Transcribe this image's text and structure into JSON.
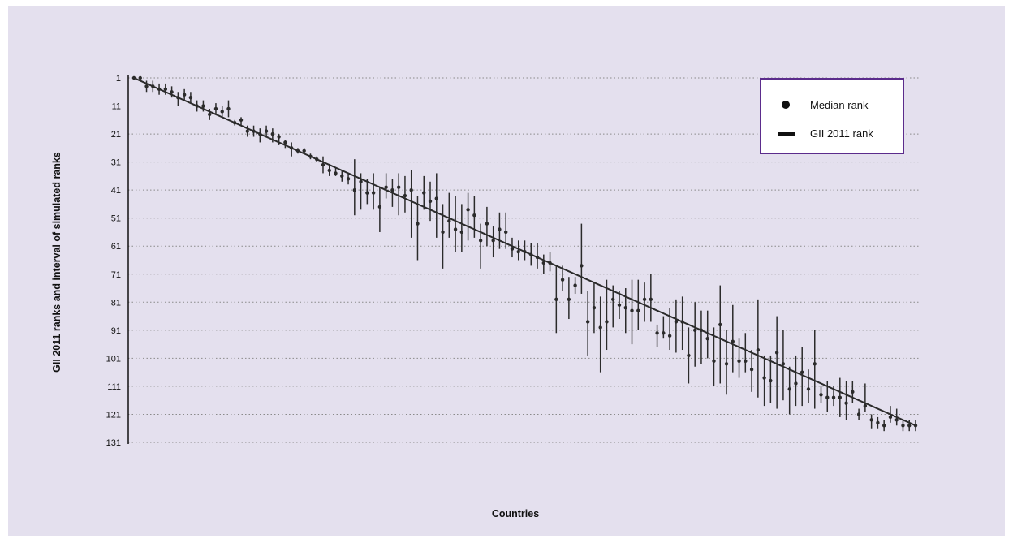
{
  "colors": {
    "panel_background": "#e4e0ee",
    "marks": "#2b2b2b",
    "legend_border": "#5b2c8c",
    "gridline": "#8a8a8a"
  },
  "chart_data": {
    "type": "scatter",
    "title": "",
    "xlabel": "Countries",
    "ylabel": "GII 2011 ranks and interval of simulated ranks",
    "y_inverted": true,
    "ylim": [
      1,
      131
    ],
    "yticks": [
      1,
      11,
      21,
      31,
      41,
      51,
      61,
      71,
      81,
      91,
      101,
      111,
      121,
      131
    ],
    "xlim": [
      1,
      125
    ],
    "grid": "horizontal dotted",
    "legend_position": "top-right",
    "legend": [
      {
        "marker": "dot",
        "label": "Median rank"
      },
      {
        "marker": "line",
        "label": "GII 2011 rank"
      }
    ],
    "series": [
      {
        "name": "Median rank",
        "x": [
          1,
          2,
          3,
          4,
          5,
          6,
          7,
          8,
          9,
          10,
          11,
          12,
          13,
          14,
          15,
          16,
          17,
          18,
          19,
          20,
          21,
          22,
          23,
          24,
          25,
          26,
          27,
          28,
          29,
          30,
          31,
          32,
          33,
          34,
          35,
          36,
          37,
          38,
          39,
          40,
          41,
          42,
          43,
          44,
          45,
          46,
          47,
          48,
          49,
          50,
          51,
          52,
          53,
          54,
          55,
          56,
          57,
          58,
          59,
          60,
          61,
          62,
          63,
          64,
          65,
          66,
          67,
          68,
          69,
          70,
          71,
          72,
          73,
          74,
          75,
          76,
          77,
          78,
          79,
          80,
          81,
          82,
          83,
          84,
          85,
          86,
          87,
          88,
          89,
          90,
          91,
          92,
          93,
          94,
          95,
          96,
          97,
          98,
          99,
          100,
          101,
          102,
          103,
          104,
          105,
          106,
          107,
          108,
          109,
          110,
          111,
          112,
          113,
          114,
          115,
          116,
          117,
          118,
          119,
          120,
          121,
          122,
          123,
          124,
          125
        ],
        "y": [
          1,
          1,
          4,
          4,
          5,
          5,
          6,
          8,
          7,
          8,
          11,
          11,
          14,
          12,
          13,
          12,
          17,
          16,
          20,
          20,
          21,
          20,
          21,
          22,
          24,
          26,
          27,
          27,
          29,
          30,
          32,
          34,
          35,
          36,
          37,
          41,
          38,
          42,
          42,
          47,
          40,
          41,
          40,
          43,
          41,
          53,
          42,
          45,
          44,
          56,
          52,
          55,
          56,
          48,
          50,
          59,
          53,
          59,
          55,
          56,
          62,
          63,
          63,
          64,
          65,
          67,
          67,
          80,
          73,
          80,
          75,
          68,
          88,
          83,
          90,
          88,
          80,
          82,
          83,
          84,
          84,
          80,
          80,
          92,
          92,
          93,
          88,
          88,
          100,
          91,
          91,
          94,
          102,
          89,
          103,
          95,
          102,
          102,
          105,
          98,
          108,
          109,
          99,
          103,
          112,
          110,
          106,
          112,
          103,
          114,
          115,
          115,
          115,
          117,
          113,
          121,
          118,
          123,
          124,
          125,
          122,
          123,
          125,
          125,
          125
        ]
      },
      {
        "name": "Interval low",
        "x": [
          1,
          2,
          3,
          4,
          5,
          6,
          7,
          8,
          9,
          10,
          11,
          12,
          13,
          14,
          15,
          16,
          17,
          18,
          19,
          20,
          21,
          22,
          23,
          24,
          25,
          26,
          27,
          28,
          29,
          30,
          31,
          32,
          33,
          34,
          35,
          36,
          37,
          38,
          39,
          40,
          41,
          42,
          43,
          44,
          45,
          46,
          47,
          48,
          49,
          50,
          51,
          52,
          53,
          54,
          55,
          56,
          57,
          58,
          59,
          60,
          61,
          62,
          63,
          64,
          65,
          66,
          67,
          68,
          69,
          70,
          71,
          72,
          73,
          74,
          75,
          76,
          77,
          78,
          79,
          80,
          81,
          82,
          83,
          84,
          85,
          86,
          87,
          88,
          89,
          90,
          91,
          92,
          93,
          94,
          95,
          96,
          97,
          98,
          99,
          100,
          101,
          102,
          103,
          104,
          105,
          106,
          107,
          108,
          109,
          110,
          111,
          112,
          113,
          114,
          115,
          116,
          117,
          118,
          119,
          120,
          121,
          122,
          123,
          124,
          125
        ],
        "y": [
          1,
          1,
          2,
          2,
          3,
          3,
          4,
          6,
          5,
          6,
          9,
          9,
          12,
          10,
          11,
          9,
          16,
          15,
          18,
          18,
          19,
          18,
          19,
          21,
          23,
          24,
          26,
          26,
          28,
          29,
          29,
          32,
          33,
          34,
          35,
          30,
          35,
          37,
          35,
          40,
          35,
          37,
          35,
          36,
          34,
          43,
          36,
          38,
          35,
          46,
          42,
          43,
          46,
          42,
          43,
          53,
          47,
          54,
          49,
          49,
          58,
          59,
          59,
          60,
          60,
          64,
          63,
          68,
          68,
          72,
          72,
          53,
          77,
          74,
          79,
          73,
          75,
          77,
          76,
          73,
          73,
          74,
          71,
          89,
          86,
          83,
          80,
          79,
          90,
          81,
          84,
          84,
          90,
          75,
          91,
          82,
          94,
          92,
          98,
          80,
          100,
          100,
          86,
          91,
          104,
          100,
          97,
          105,
          91,
          111,
          109,
          111,
          108,
          109,
          109,
          119,
          110,
          121,
          122,
          123,
          118,
          119,
          123,
          123,
          123
        ]
      },
      {
        "name": "Interval high",
        "x": [
          1,
          2,
          3,
          4,
          5,
          6,
          7,
          8,
          9,
          10,
          11,
          12,
          13,
          14,
          15,
          16,
          17,
          18,
          19,
          20,
          21,
          22,
          23,
          24,
          25,
          26,
          27,
          28,
          29,
          30,
          31,
          32,
          33,
          34,
          35,
          36,
          37,
          38,
          39,
          40,
          41,
          42,
          43,
          44,
          45,
          46,
          47,
          48,
          49,
          50,
          51,
          52,
          53,
          54,
          55,
          56,
          57,
          58,
          59,
          60,
          61,
          62,
          63,
          64,
          65,
          66,
          67,
          68,
          69,
          70,
          71,
          72,
          73,
          74,
          75,
          76,
          77,
          78,
          79,
          80,
          81,
          82,
          83,
          84,
          85,
          86,
          87,
          88,
          89,
          90,
          91,
          92,
          93,
          94,
          95,
          96,
          97,
          98,
          99,
          100,
          101,
          102,
          103,
          104,
          105,
          106,
          107,
          108,
          109,
          110,
          111,
          112,
          113,
          114,
          115,
          116,
          117,
          118,
          119,
          120,
          121,
          122,
          123,
          124,
          125
        ],
        "y": [
          1,
          1,
          6,
          6,
          7,
          7,
          8,
          11,
          9,
          10,
          13,
          13,
          16,
          14,
          15,
          15,
          18,
          18,
          22,
          22,
          24,
          22,
          24,
          25,
          26,
          29,
          28,
          28,
          30,
          31,
          35,
          36,
          36,
          38,
          39,
          50,
          48,
          46,
          48,
          56,
          44,
          47,
          50,
          49,
          58,
          66,
          48,
          52,
          58,
          69,
          58,
          63,
          63,
          59,
          58,
          69,
          61,
          65,
          62,
          62,
          65,
          66,
          66,
          68,
          69,
          71,
          70,
          92,
          77,
          87,
          78,
          78,
          100,
          92,
          106,
          98,
          90,
          87,
          92,
          96,
          91,
          88,
          88,
          97,
          94,
          98,
          99,
          98,
          110,
          104,
          103,
          101,
          111,
          110,
          114,
          106,
          108,
          106,
          113,
          115,
          118,
          117,
          119,
          116,
          121,
          118,
          118,
          117,
          119,
          117,
          120,
          118,
          122,
          123,
          117,
          123,
          120,
          126,
          126,
          127,
          124,
          125,
          127,
          127,
          127
        ]
      }
    ]
  }
}
